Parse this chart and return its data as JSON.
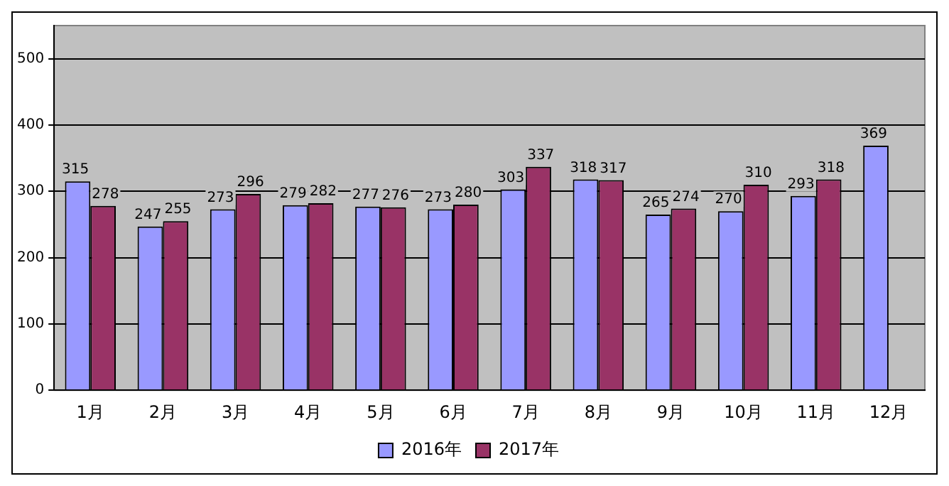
{
  "chart_data": {
    "type": "bar",
    "categories": [
      "1月",
      "2月",
      "3月",
      "4月",
      "5月",
      "6月",
      "7月",
      "8月",
      "9月",
      "10月",
      "11月",
      "12月"
    ],
    "series": [
      {
        "name": "2016年",
        "color": "#9999ff",
        "values": [
          315,
          247,
          273,
          279,
          277,
          273,
          303,
          318,
          265,
          270,
          293,
          369
        ]
      },
      {
        "name": "2017年",
        "color": "#993366",
        "values": [
          278,
          255,
          296,
          282,
          276,
          280,
          337,
          317,
          274,
          310,
          318,
          null
        ]
      }
    ],
    "ylim": [
      0,
      550
    ],
    "yticks": [
      0,
      100,
      200,
      300,
      400,
      500
    ],
    "grid": "y",
    "legend": "bottom",
    "data_labels": true
  }
}
